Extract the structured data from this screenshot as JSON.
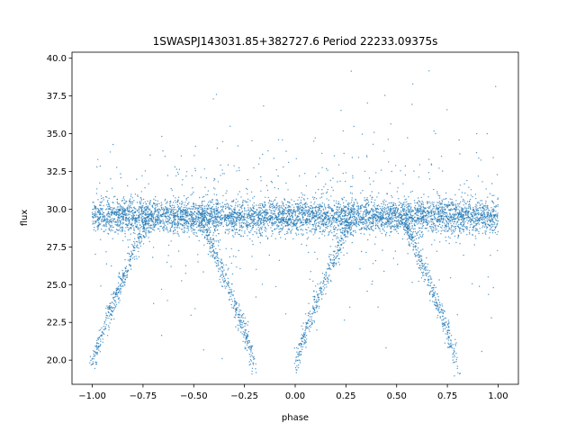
{
  "chart_data": {
    "type": "scatter",
    "title": "1SWASPJ143031.85+382727.6 Period 22233.09375s",
    "xlabel": "phase",
    "ylabel": "flux",
    "xlim": [
      -1.1,
      1.1
    ],
    "ylim": [
      18.4,
      40.4
    ],
    "x_ticks": [
      -1.0,
      -0.75,
      -0.5,
      -0.25,
      0.0,
      0.25,
      0.5,
      0.75,
      1.0
    ],
    "x_tick_labels": [
      "−1.00",
      "−0.75",
      "−0.50",
      "−0.25",
      "0.00",
      "0.25",
      "0.50",
      "0.75",
      "1.00"
    ],
    "y_ticks": [
      20.0,
      22.5,
      25.0,
      27.5,
      30.0,
      32.5,
      35.0,
      37.5,
      40.0
    ],
    "y_tick_labels": [
      "20.0",
      "22.5",
      "25.0",
      "27.5",
      "30.0",
      "32.5",
      "35.0",
      "37.5",
      "40.0"
    ],
    "grid": false,
    "legend": "none",
    "marker_color": "#1f77b4",
    "series": [
      {
        "baseline_flux": 29.5,
        "phase_range": [
          -1.0,
          1.0
        ],
        "eclipses": [
          {
            "ingress_phase": -1.0,
            "egress_phase": -0.72,
            "min_flux": 19.5,
            "shape": "rising-branch"
          },
          {
            "ingress_phase": -0.47,
            "egress_phase": -0.2,
            "min_flux": 19.5,
            "shape": "falling-branch"
          },
          {
            "ingress_phase": 0.0,
            "egress_phase": 0.28,
            "min_flux": 19.5,
            "shape": "rising-branch"
          },
          {
            "ingress_phase": 0.53,
            "egress_phase": 0.8,
            "min_flux": 19.5,
            "shape": "falling-branch"
          }
        ],
        "outlier_flux_range": [
          19.5,
          39.2
        ]
      }
    ]
  }
}
